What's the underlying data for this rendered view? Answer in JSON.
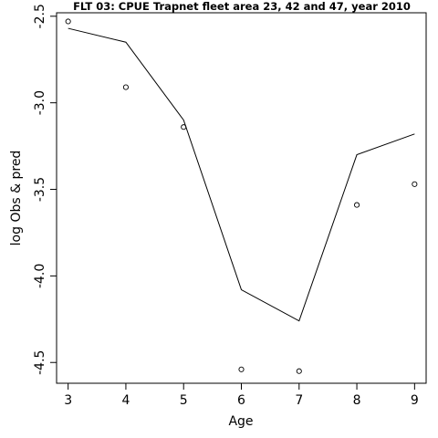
{
  "chart_data": {
    "type": "line",
    "title": "FLT 03: CPUE Trapnet fleet area 23, 42 and 47, year 2010",
    "xlabel": "Age",
    "ylabel": "log Obs & pred",
    "x": [
      3,
      4,
      5,
      6,
      7,
      8,
      9
    ],
    "xlim": [
      2.8,
      9.2
    ],
    "ylim": [
      -4.62,
      -2.48
    ],
    "xticks": [
      3,
      4,
      5,
      6,
      7,
      8,
      9
    ],
    "yticks": [
      -2.5,
      -3.0,
      -3.5,
      -4.0,
      -4.5
    ],
    "ytick_labels": [
      "-2.5",
      "-3.0",
      "-3.5",
      "-4.0",
      "-4.5"
    ],
    "series": [
      {
        "style": "points",
        "values": [
          -2.53,
          -2.91,
          -3.14,
          -4.54,
          -4.55,
          -3.59,
          -3.47
        ]
      },
      {
        "style": "line",
        "values": [
          -2.57,
          -2.65,
          -3.1,
          -4.08,
          -4.26,
          -3.3,
          -3.18
        ]
      }
    ],
    "grid": false
  }
}
